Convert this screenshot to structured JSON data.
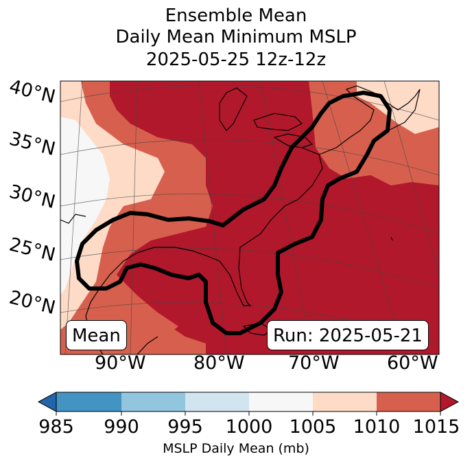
{
  "title": {
    "line1": "Ensemble Mean",
    "line2": "Daily Mean Minimum MSLP",
    "line3": "2025-05-25 12z-12z"
  },
  "map": {
    "lat_labels": [
      "40°N",
      "35°N",
      "30°N",
      "25°N",
      "20°N"
    ],
    "lon_labels": [
      "90°W",
      "80°W",
      "70°W",
      "60°W"
    ],
    "legend_box": "Mean",
    "run_box": "Run: 2025-05-21",
    "contour_color": "#000000"
  },
  "colorbar": {
    "label": "MSLP Daily Mean (mb)",
    "ticks": [
      "985",
      "990",
      "995",
      "1000",
      "1005",
      "1010",
      "1015"
    ],
    "colors": [
      "#2166ac",
      "#4393c3",
      "#92c5de",
      "#d1e5f0",
      "#f7f7f7",
      "#fddbc7",
      "#d6604d",
      "#b2182b"
    ]
  }
}
